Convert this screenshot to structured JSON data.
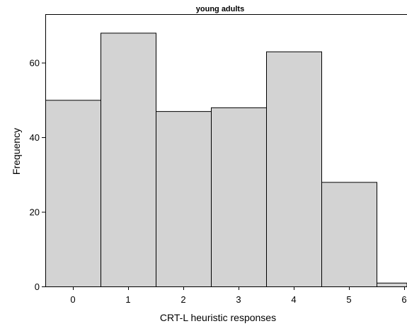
{
  "chart_data": {
    "type": "bar",
    "title": "young adults",
    "xlabel": "CRT-L heuristic responses",
    "ylabel": "Frequency",
    "categories": [
      "0",
      "1",
      "2",
      "3",
      "4",
      "5",
      "6"
    ],
    "values": [
      50,
      68,
      47,
      48,
      63,
      28,
      1
    ],
    "ylim": [
      0,
      73
    ],
    "yticks": [
      0,
      20,
      40,
      60
    ],
    "grid": false,
    "bar_color": "#d3d3d3",
    "edge_color": "#000000"
  }
}
